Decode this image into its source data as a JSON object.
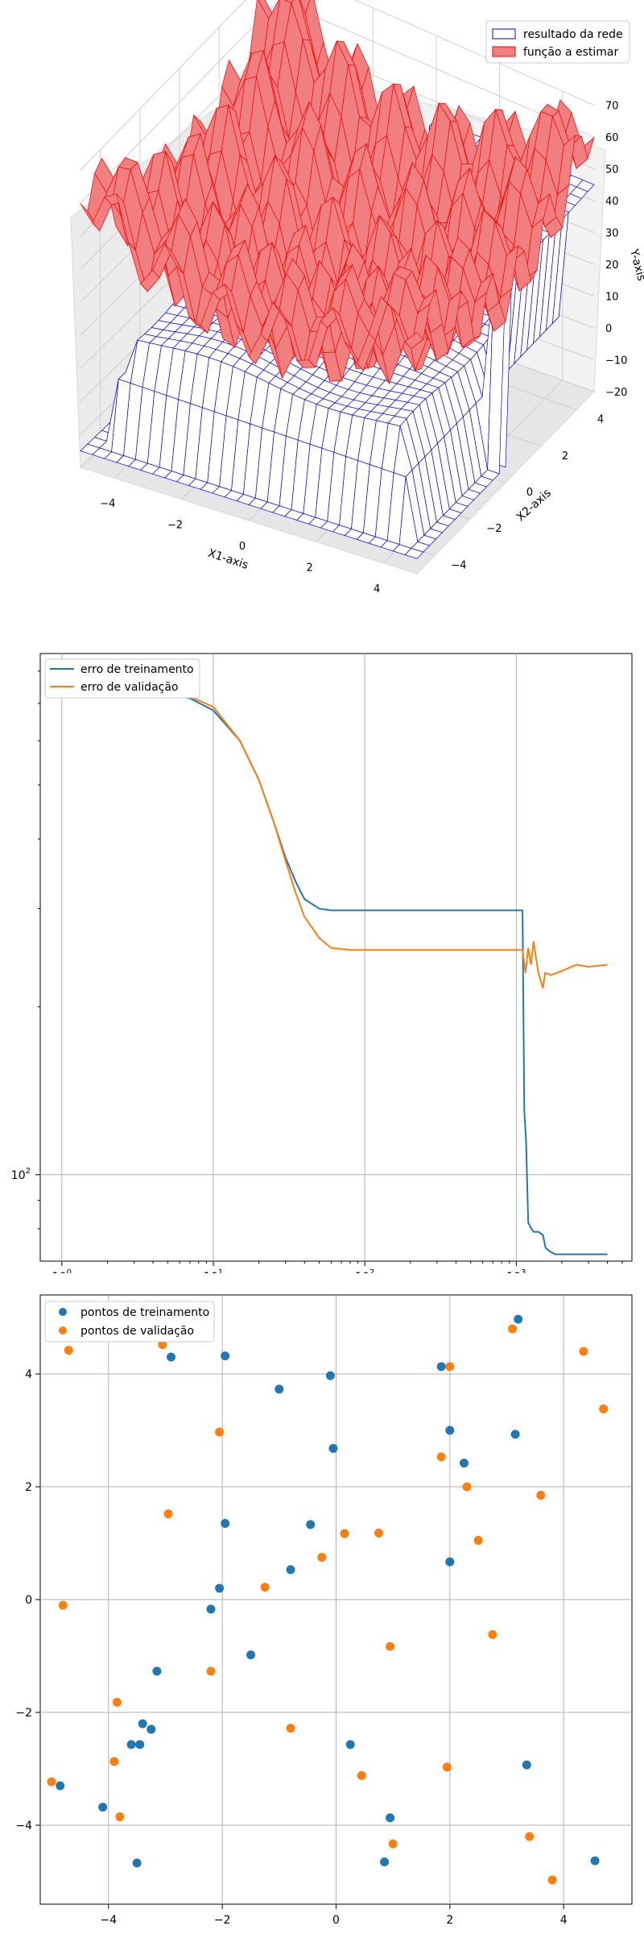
{
  "chart_data": [
    {
      "type": "surface3d",
      "xlabel": "X1-axis",
      "ylabel": "X2-axis",
      "zlabel": "Y-axis",
      "xlim": [
        -5,
        5
      ],
      "ylim": [
        -5,
        5
      ],
      "zlim": [
        -20,
        70
      ],
      "x_ticks": [
        "−4",
        "−2",
        "0",
        "2",
        "4"
      ],
      "y_ticks": [
        "4",
        "2",
        "0",
        "−2",
        "−4"
      ],
      "z_ticks": [
        "70",
        "60",
        "50",
        "40",
        "30",
        "20",
        "10",
        "0",
        "−10",
        "−20"
      ],
      "legend_position": "top-right",
      "series": [
        {
          "name": "resultado da rede",
          "color": "#0000ff",
          "fill": "#ffffff",
          "style": "wireframe"
        },
        {
          "name": "função a estimar",
          "color": "#ff0000",
          "fill": "#f08080",
          "style": "surface"
        }
      ]
    },
    {
      "type": "line",
      "x_scale": "log",
      "y_scale": "log",
      "grid": true,
      "legend_position": "top-left",
      "x_ticks": [
        {
          "value": 1,
          "base": "10",
          "exp": "0"
        },
        {
          "value": 10,
          "base": "10",
          "exp": "1"
        },
        {
          "value": 100,
          "base": "10",
          "exp": "2"
        },
        {
          "value": 1000,
          "base": "10",
          "exp": "3"
        }
      ],
      "y_ticks": [
        {
          "value": 100,
          "base": "10",
          "exp": "2"
        }
      ],
      "xlim": [
        0.72,
        5800
      ],
      "ylim": [
        70,
        860
      ],
      "series": [
        {
          "name": "erro de treinamento",
          "color": "#1f77b4",
          "x": [
            1,
            2,
            4,
            7,
            10,
            15,
            20,
            25,
            30,
            35,
            40,
            50,
            60,
            80,
            100,
            200,
            500,
            900,
            1100,
            1130,
            1160,
            1200,
            1260,
            1300,
            1400,
            1500,
            1560,
            1650,
            1800,
            2500,
            4000
          ],
          "y": [
            750,
            745,
            735,
            715,
            680,
            600,
            510,
            430,
            370,
            335,
            312,
            300,
            298,
            298,
            298,
            298,
            298,
            298,
            298,
            130,
            115,
            82,
            80,
            79,
            79,
            78,
            74,
            73,
            72,
            72,
            72
          ]
        },
        {
          "name": "erro de validação",
          "color": "#ff7f0e",
          "x": [
            1,
            2,
            4,
            7,
            10,
            15,
            20,
            25,
            30,
            35,
            40,
            50,
            60,
            80,
            100,
            200,
            500,
            900,
            1100,
            1150,
            1200,
            1250,
            1300,
            1400,
            1500,
            1550,
            1700,
            2000,
            2500,
            3000,
            4000
          ],
          "y": [
            765,
            760,
            750,
            720,
            690,
            600,
            510,
            430,
            365,
            320,
            290,
            266,
            255,
            253,
            253,
            253,
            253,
            253,
            253,
            230,
            255,
            238,
            262,
            230,
            216,
            230,
            228,
            232,
            238,
            236,
            238
          ]
        }
      ]
    },
    {
      "type": "scatter",
      "grid": true,
      "legend_position": "top-left",
      "xlim": [
        -5.2,
        5.2
      ],
      "ylim": [
        -5.4,
        5.4
      ],
      "x_ticks": [
        -4,
        -2,
        0,
        2,
        4
      ],
      "y_ticks": [
        4,
        2,
        0,
        -2,
        -4
      ],
      "series": [
        {
          "name": "pontos de treinamento",
          "color": "#1f77b4",
          "points": [
            [
              3.2,
              4.97
            ],
            [
              -2.9,
              4.3
            ],
            [
              -1.95,
              4.32
            ],
            [
              -1.0,
              3.73
            ],
            [
              -0.1,
              3.97
            ],
            [
              1.85,
              4.13
            ],
            [
              -0.05,
              2.68
            ],
            [
              2.0,
              3.0
            ],
            [
              2.25,
              2.42
            ],
            [
              3.15,
              2.93
            ],
            [
              -1.95,
              1.35
            ],
            [
              -0.45,
              1.33
            ],
            [
              -0.8,
              0.53
            ],
            [
              -2.05,
              0.2
            ],
            [
              -2.2,
              -0.17
            ],
            [
              2.0,
              0.67
            ],
            [
              -1.5,
              -0.98
            ],
            [
              -3.15,
              -1.27
            ],
            [
              -3.4,
              -2.2
            ],
            [
              -3.25,
              -2.3
            ],
            [
              -3.6,
              -2.57
            ],
            [
              -3.45,
              -2.57
            ],
            [
              0.25,
              -2.57
            ],
            [
              -4.85,
              -3.3
            ],
            [
              -4.1,
              -3.68
            ],
            [
              0.95,
              -3.87
            ],
            [
              3.35,
              -2.93
            ],
            [
              -3.5,
              -4.67
            ],
            [
              0.85,
              -4.65
            ],
            [
              4.55,
              -4.63
            ]
          ]
        },
        {
          "name": "pontos de validação",
          "color": "#ff7f0e",
          "points": [
            [
              -3.05,
              4.52
            ],
            [
              -4.7,
              4.42
            ],
            [
              3.1,
              4.8
            ],
            [
              4.35,
              4.4
            ],
            [
              2.0,
              4.13
            ],
            [
              4.7,
              3.38
            ],
            [
              -2.05,
              2.97
            ],
            [
              1.85,
              2.53
            ],
            [
              2.3,
              2.0
            ],
            [
              3.6,
              1.85
            ],
            [
              -2.95,
              1.52
            ],
            [
              0.15,
              1.17
            ],
            [
              0.75,
              1.18
            ],
            [
              2.5,
              1.05
            ],
            [
              -0.25,
              0.75
            ],
            [
              -1.25,
              0.22
            ],
            [
              -4.8,
              -0.1
            ],
            [
              2.75,
              -0.62
            ],
            [
              0.95,
              -0.83
            ],
            [
              -3.85,
              -1.82
            ],
            [
              -2.2,
              -1.27
            ],
            [
              -0.8,
              -2.28
            ],
            [
              -3.9,
              -2.87
            ],
            [
              1.95,
              -2.97
            ],
            [
              0.45,
              -3.12
            ],
            [
              -5.0,
              -3.23
            ],
            [
              -3.8,
              -3.85
            ],
            [
              3.4,
              -4.2
            ],
            [
              1.0,
              -4.33
            ],
            [
              3.8,
              -4.97
            ]
          ]
        }
      ]
    }
  ]
}
